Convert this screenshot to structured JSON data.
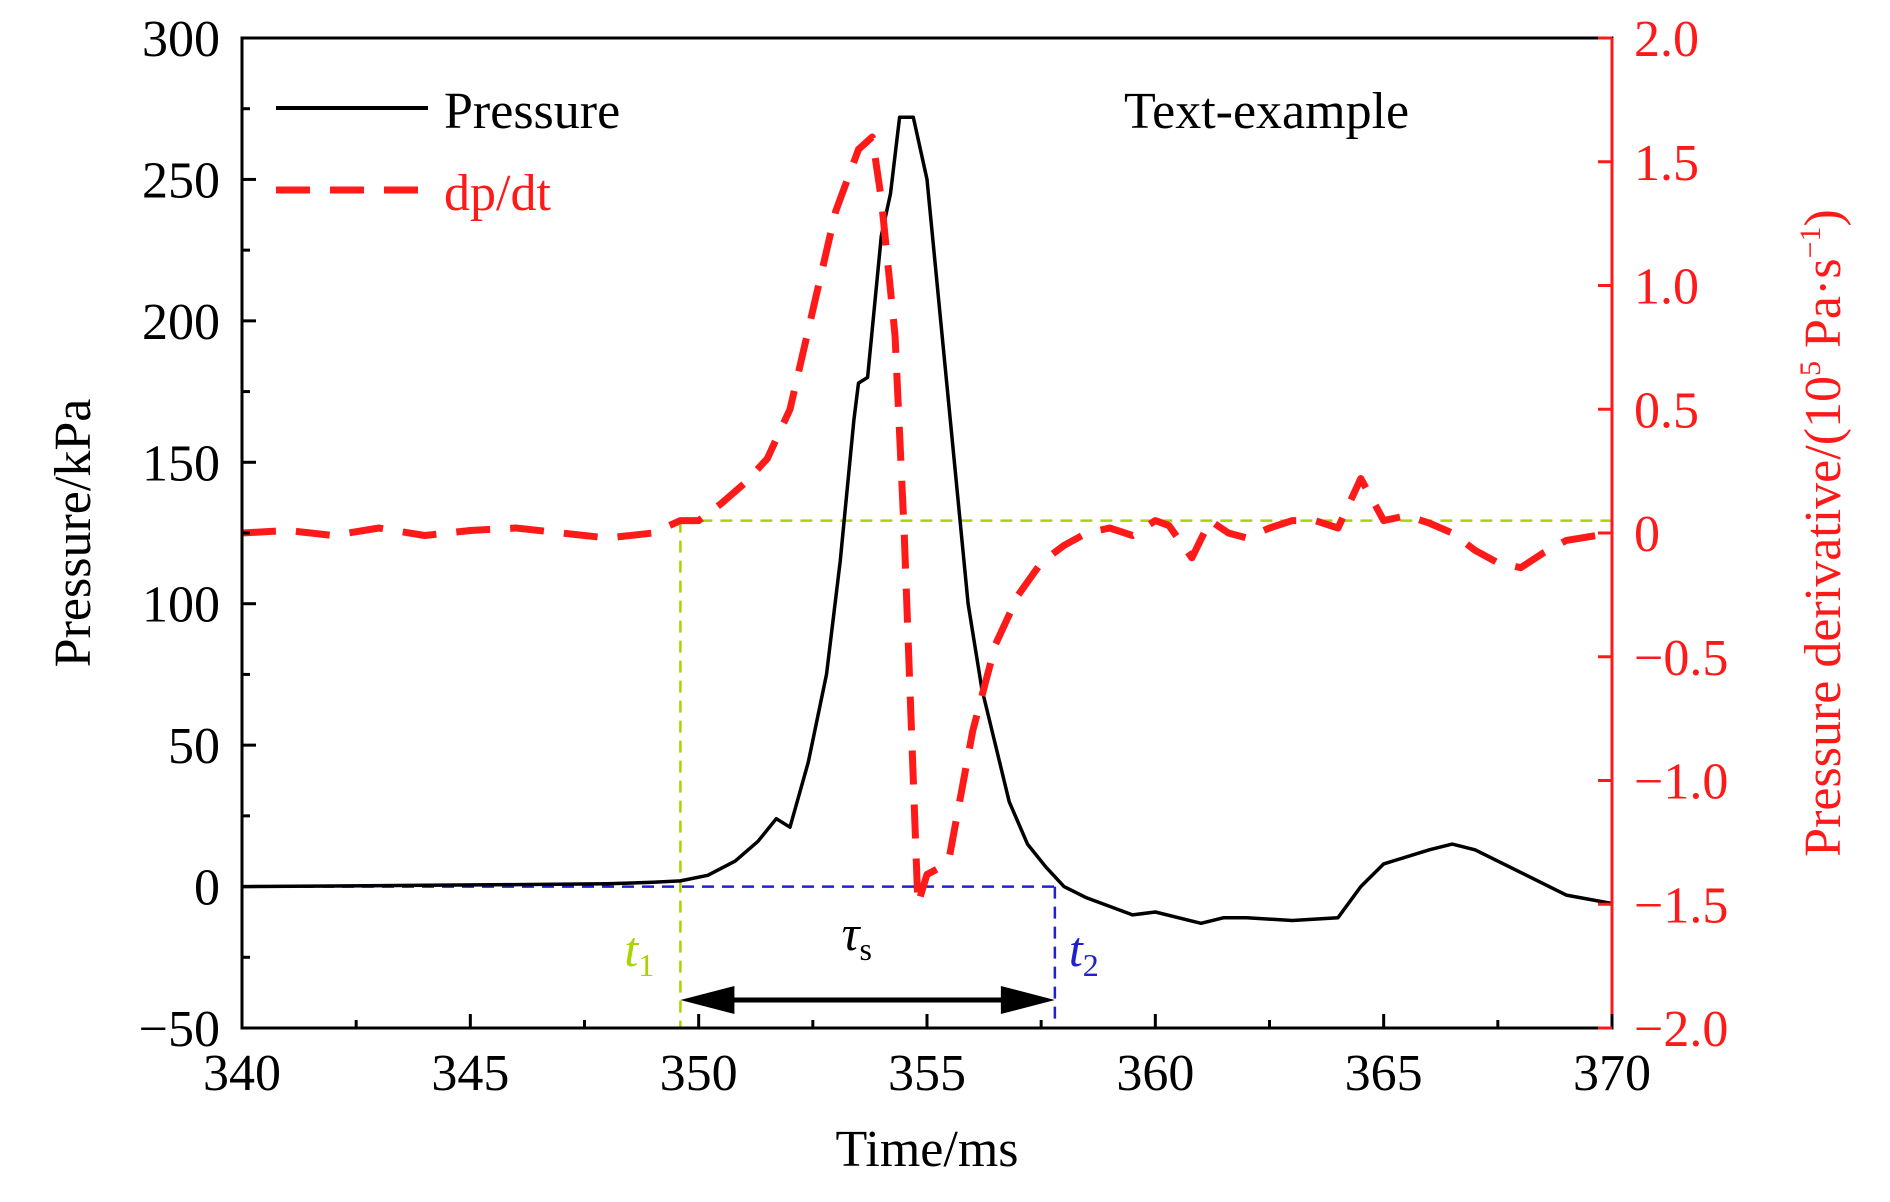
{
  "chart_data": {
    "type": "line",
    "xlabel": "Time/ms",
    "ylabel": "Pressure/kPa",
    "y2label_main": "Pressure derivative/(10",
    "y2label_sup1": "5",
    "y2label_mid": " Pa·s",
    "y2label_sup2": "−1",
    "y2label_end": ")",
    "xlim": [
      340,
      370
    ],
    "ylim": [
      -50,
      300
    ],
    "y2lim": [
      -2.0,
      2.0
    ],
    "x_ticks": [
      "340",
      "345",
      "350",
      "355",
      "360",
      "365",
      "370"
    ],
    "y_ticks": [
      "−50",
      "0",
      "50",
      "100",
      "150",
      "200",
      "250",
      "300"
    ],
    "y2_ticks": [
      "−2.0",
      "−1.5",
      "−1.0",
      "−0.5",
      "0",
      "0.5",
      "1.0",
      "1.5",
      "2.0"
    ],
    "text_label": "Text-example",
    "legend": {
      "placement": "top-left",
      "entries": [
        "Pressure",
        "dp/dt"
      ]
    },
    "colors": {
      "pressure": "#000000",
      "dpdt": "#ff1a1a",
      "t1": "#a8d400",
      "t2": "#2020d0",
      "right_axis": "#ff1a1a"
    },
    "annotations": {
      "t1_base": "t",
      "t1_sub": "1",
      "t2_base": "t",
      "t2_sub": "2",
      "tau_base": "τ",
      "tau_sub": "s",
      "t1_x": 349.6,
      "t2_x": 357.8
    },
    "series": [
      {
        "name": "Pressure",
        "axis": "left",
        "x": [
          340,
          342,
          344,
          346,
          348,
          349,
          349.6,
          350.2,
          350.8,
          351.3,
          351.7,
          352,
          352.4,
          352.8,
          353.1,
          353.4,
          353.5,
          353.7,
          354,
          354.2,
          354.4,
          354.7,
          355,
          355.3,
          355.6,
          355.9,
          356.2,
          356.5,
          356.8,
          357.2,
          357.6,
          358,
          358.5,
          359,
          359.5,
          360,
          361,
          361.5,
          362,
          363,
          364,
          364.5,
          365,
          366,
          366.5,
          367,
          368,
          369,
          370
        ],
        "y": [
          0,
          0.2,
          0.5,
          0.7,
          1,
          1.5,
          2,
          4,
          9,
          16,
          24,
          21,
          44,
          75,
          115,
          165,
          178,
          180,
          230,
          245,
          272,
          272,
          250,
          200,
          150,
          100,
          70,
          50,
          30,
          15,
          7,
          0,
          -4,
          -7,
          -10,
          -9,
          -13,
          -11,
          -11,
          -12,
          -11,
          0,
          8,
          13,
          15,
          13,
          5,
          -3,
          -6
        ]
      },
      {
        "name": "dp/dt",
        "axis": "right",
        "x": [
          340,
          341,
          342,
          343,
          344,
          345,
          346,
          347,
          348,
          349,
          349.6,
          350,
          350.5,
          351,
          351.5,
          352,
          352.5,
          353,
          353.5,
          353.8,
          354,
          354.3,
          354.5,
          354.8,
          355,
          355.3,
          355.5,
          356,
          356.5,
          357,
          357.5,
          358,
          358.5,
          359,
          359.5,
          360,
          360.3,
          360.8,
          361.2,
          361.6,
          362,
          362.5,
          363,
          363.5,
          364,
          364.5,
          365,
          365.5,
          366,
          366.5,
          367,
          367.5,
          368,
          368.5,
          369,
          370
        ],
        "y": [
          0,
          0.01,
          -0.01,
          0.02,
          -0.01,
          0.01,
          0.02,
          0.0,
          -0.02,
          0.0,
          0.05,
          0.05,
          0.12,
          0.2,
          0.3,
          0.5,
          0.9,
          1.3,
          1.55,
          1.6,
          1.35,
          0.8,
          0.0,
          -1.5,
          -1.38,
          -1.35,
          -1.3,
          -0.8,
          -0.45,
          -0.25,
          -0.12,
          -0.05,
          0.0,
          0.02,
          -0.01,
          0.05,
          0.03,
          -0.1,
          0.05,
          0.0,
          -0.02,
          0.02,
          0.05,
          0.05,
          0.02,
          0.22,
          0.05,
          0.07,
          0.04,
          0.0,
          -0.07,
          -0.12,
          -0.14,
          -0.08,
          -0.03,
          0.0
        ]
      }
    ]
  }
}
